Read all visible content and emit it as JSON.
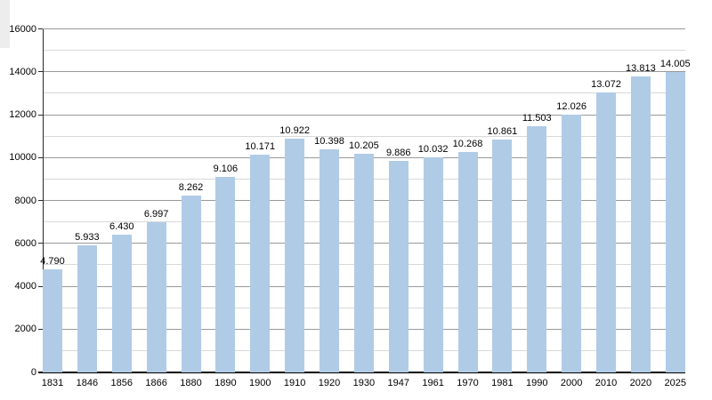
{
  "chart_data": {
    "type": "bar",
    "title": "",
    "xlabel": "",
    "ylabel": "",
    "categories": [
      "1831",
      "1846",
      "1856",
      "1866",
      "1880",
      "1890",
      "1900",
      "1910",
      "1920",
      "1930",
      "1947",
      "1961",
      "1970",
      "1981",
      "1990",
      "2000",
      "2010",
      "2020",
      "2025"
    ],
    "values": [
      4790,
      5933,
      6430,
      6997,
      8262,
      9106,
      10171,
      10922,
      10398,
      10205,
      9886,
      10032,
      10268,
      10861,
      11503,
      12026,
      13072,
      13813,
      14005
    ],
    "value_labels": [
      "4.790",
      "5.933",
      "6.430",
      "6.997",
      "8.262",
      "9.106",
      "10.171",
      "10.922",
      "10.398",
      "10.205",
      "9.886",
      "10.032",
      "10.268",
      "10.861",
      "11.503",
      "12.026",
      "13.072",
      "13.813",
      "14.005"
    ],
    "ylim": [
      0,
      16000
    ],
    "y_tick_step_major": 2000,
    "y_tick_step_minor": 1000,
    "y_tick_labels": [
      "0",
      "2000",
      "4000",
      "6000",
      "8000",
      "10000",
      "12000",
      "14000",
      "16000"
    ],
    "grid": "horizontal, major every 2000 and minor every 1000, bars drawn over gridlines",
    "legend": "none",
    "colors": {
      "bar": "#b0cbe6",
      "grid_major": "#9a9a9a",
      "grid_minor": "#d9d9d9",
      "axis": "#2a2a2a",
      "text": "#000000",
      "background": "#ffffff",
      "corner_artifact": "#ededed"
    }
  }
}
